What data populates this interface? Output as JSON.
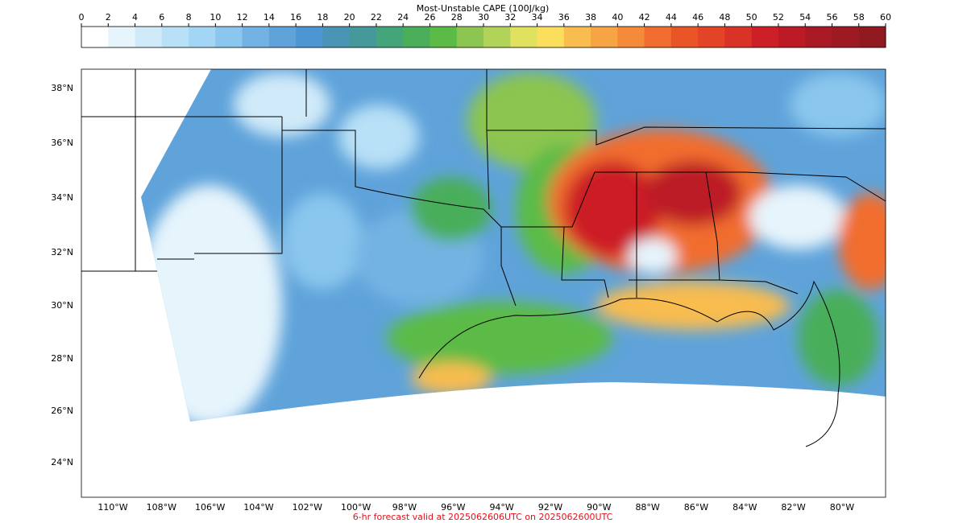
{
  "colorbar": {
    "title": "Most-Unstable CAPE (100J/kg)",
    "ticks": [
      0,
      2,
      4,
      6,
      8,
      10,
      12,
      14,
      16,
      18,
      20,
      22,
      24,
      26,
      28,
      30,
      32,
      34,
      36,
      38,
      40,
      42,
      44,
      46,
      48,
      50,
      52,
      54,
      56,
      58,
      60
    ],
    "colors": [
      "#ffffff",
      "#e6f4fc",
      "#d0eaf9",
      "#b8e0f7",
      "#a3d6f5",
      "#8ac6ed",
      "#73b3e3",
      "#5fa3da",
      "#4e96d3",
      "#4a94b5",
      "#46999a",
      "#45a57a",
      "#4aae5a",
      "#5cbb47",
      "#8cc54f",
      "#b2d35a",
      "#dfe15f",
      "#fbde5c",
      "#f8bc4f",
      "#f7a444",
      "#f58a3b",
      "#f16d2f",
      "#ea5528",
      "#e34327",
      "#d93327",
      "#cc1f27",
      "#bc1b26",
      "#aa1a24",
      "#9d1a22",
      "#901a1f"
    ]
  },
  "map": {
    "lat_labels": [
      "38°N",
      "36°N",
      "34°N",
      "32°N",
      "30°N",
      "28°N",
      "26°N",
      "24°N"
    ],
    "lon_labels": [
      "110°W",
      "108°W",
      "106°W",
      "104°W",
      "102°W",
      "100°W",
      "98°W",
      "96°W",
      "94°W",
      "92°W",
      "90°W",
      "88°W",
      "86°W",
      "84°W",
      "82°W",
      "80°W"
    ]
  },
  "footer": "6-hr forecast valid at 2025062606UTC on 2025062600UTC"
}
